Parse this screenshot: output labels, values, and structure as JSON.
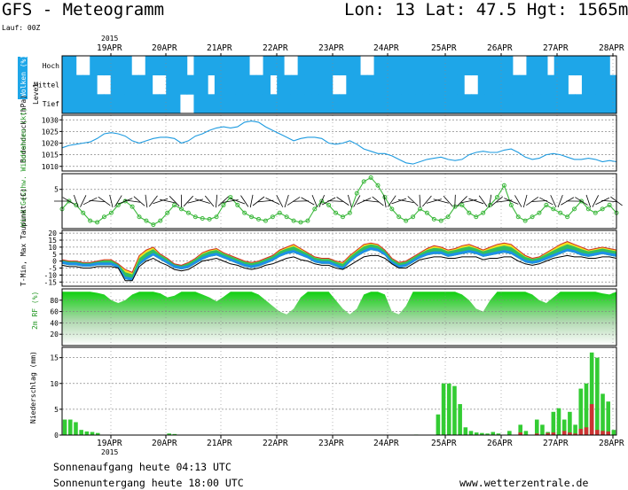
{
  "header": {
    "title": "GFS - Meteogramm",
    "location": "Lon: 13 Lat: 47.5 Hgt: 1565m",
    "run": "Lauf: 00Z",
    "year": "2015"
  },
  "footer": {
    "sunrise": "Sonnenaufgang heute 04:13 UTC",
    "sunset": "Sonnenuntergang heute 18:00 UTC",
    "site": "www.wetterzentrale.de"
  },
  "days": [
    "19APR",
    "20APR",
    "21APR",
    "22APR",
    "23APR",
    "24APR",
    "25APR",
    "26APR",
    "27APR",
    "28APR"
  ],
  "colors": {
    "cloud": "#1ea6e8",
    "humidity": "#22c022",
    "precip": "#33cc33",
    "precip_conv": "#cc3333",
    "pressure": "#1e9be0",
    "wind": "#3cb83c"
  },
  "chart_data": [
    {
      "type": "heatmap",
      "panel": "clouds",
      "ylabel": "Wolken (%)",
      "ylabel2": "Level",
      "levels": [
        "Hoch",
        "Mittel",
        "Tief"
      ],
      "x_unit": "forecast step (3h) from 18APR 12Z",
      "cover_high": [
        1,
        1,
        0,
        0,
        1,
        1,
        1,
        1,
        1,
        1,
        0,
        0,
        1,
        1,
        1,
        1,
        1,
        1,
        0,
        1,
        1,
        1,
        1,
        1,
        1,
        1,
        1,
        0,
        0,
        1,
        1,
        1,
        0,
        0,
        1,
        1,
        1,
        1,
        1,
        1,
        1,
        1,
        1,
        0,
        0,
        1,
        1,
        1,
        1,
        1,
        1,
        1,
        1,
        1,
        1,
        1,
        1,
        1,
        1,
        1,
        1,
        1,
        1,
        1,
        1,
        0,
        0,
        1,
        1,
        1,
        0,
        1,
        1,
        1,
        1,
        1,
        1,
        1,
        1,
        0
      ],
      "cover_mid": [
        1,
        1,
        1,
        1,
        1,
        0,
        0,
        1,
        1,
        1,
        1,
        1,
        1,
        0,
        0,
        1,
        1,
        1,
        1,
        1,
        1,
        0,
        1,
        1,
        1,
        1,
        1,
        1,
        1,
        1,
        0,
        1,
        1,
        1,
        1,
        1,
        1,
        1,
        1,
        0,
        0,
        1,
        1,
        1,
        1,
        1,
        1,
        1,
        1,
        1,
        1,
        1,
        1,
        1,
        1,
        1,
        1,
        1,
        0,
        0,
        1,
        1,
        1,
        1,
        1,
        1,
        1,
        1,
        1,
        1,
        1,
        1,
        1,
        0,
        0,
        1,
        1,
        1,
        1,
        1
      ],
      "cover_low": [
        1,
        1,
        1,
        1,
        1,
        1,
        1,
        1,
        1,
        1,
        1,
        1,
        1,
        1,
        1,
        1,
        1,
        0,
        0,
        1,
        1,
        1,
        1,
        1,
        1,
        1,
        1,
        1,
        1,
        1,
        1,
        1,
        1,
        1,
        1,
        1,
        1,
        1,
        1,
        1,
        1,
        1,
        1,
        1,
        1,
        1,
        1,
        1,
        1,
        1,
        1,
        1,
        1,
        1,
        1,
        1,
        1,
        1,
        1,
        1,
        1,
        1,
        1,
        1,
        1,
        1,
        1,
        1,
        1,
        1,
        1,
        1,
        1,
        1,
        1,
        1,
        1,
        1,
        1,
        1
      ]
    },
    {
      "type": "line",
      "panel": "pressure",
      "ylabel": "Bodendruck (hPa)",
      "yticks": [
        1010,
        1015,
        1020,
        1025,
        1030
      ],
      "ylim": [
        1008,
        1032
      ],
      "values": [
        1018,
        1019,
        1019.5,
        1020,
        1020.5,
        1022,
        1024,
        1024.5,
        1024,
        1023,
        1021,
        1020,
        1021,
        1022,
        1022.5,
        1022.5,
        1022,
        1020,
        1021,
        1023,
        1024,
        1025.5,
        1026.5,
        1027,
        1026.5,
        1027,
        1029,
        1029.5,
        1029,
        1027,
        1025.5,
        1024,
        1022.5,
        1021,
        1022,
        1022.5,
        1022.5,
        1022,
        1020,
        1019.5,
        1020,
        1021,
        1019.5,
        1017.5,
        1016.5,
        1015.5,
        1015.5,
        1014.5,
        1013,
        1011.5,
        1011,
        1012,
        1013,
        1013.5,
        1014,
        1013,
        1012.5,
        1013,
        1015,
        1016,
        1016.5,
        1016,
        1016,
        1017,
        1017.5,
        1016,
        1014,
        1013,
        1013.5,
        1015,
        1015.5,
        1015,
        1014,
        1013,
        1013,
        1013.5,
        1013,
        1012,
        1012.5,
        1012
      ]
    },
    {
      "type": "line",
      "panel": "wind",
      "ylabel": "Wind Geschw. Windfahnen (kt)",
      "yticks": [
        5
      ],
      "ylim": [
        0,
        7
      ],
      "values": [
        2.5,
        3.5,
        3,
        2,
        1,
        0.8,
        1.5,
        2,
        3,
        3.5,
        2.8,
        1.5,
        1,
        0.5,
        1,
        2,
        3,
        2.5,
        2,
        1.5,
        1.3,
        1.2,
        1.5,
        3,
        4,
        3,
        2,
        1.5,
        1.2,
        1,
        1.5,
        2,
        1.5,
        1,
        0.8,
        1,
        2.5,
        3.5,
        3,
        2,
        1.5,
        2,
        4.5,
        6,
        6.5,
        5.5,
        4,
        2.5,
        1.5,
        1,
        1.5,
        2.5,
        2,
        1.2,
        1,
        1.5,
        2.8,
        3,
        2,
        1.5,
        2,
        3,
        4,
        5.5,
        3,
        1.5,
        1,
        1.5,
        2,
        3,
        2.5,
        2,
        1.5,
        2.5,
        3.5,
        2.5,
        2,
        2.5,
        3,
        2
      ]
    },
    {
      "type": "area",
      "panel": "temperature",
      "ylabel": "T-Min, Max Taupunkt (C)",
      "yticks": [
        -15,
        -10,
        -5,
        0,
        5,
        10,
        15,
        20
      ],
      "ylim": [
        -18,
        22
      ],
      "tmax": [
        1,
        0,
        0,
        -1,
        -1,
        0,
        1,
        1,
        -2,
        -6,
        -8,
        4,
        8,
        10,
        5,
        2,
        -2,
        -3,
        -1,
        2,
        6,
        8,
        9,
        6,
        4,
        2,
        0,
        -1,
        0,
        2,
        4,
        8,
        10,
        12,
        9,
        6,
        3,
        2,
        2,
        0,
        -1,
        4,
        8,
        12,
        13,
        12,
        8,
        2,
        -1,
        0,
        3,
        6,
        9,
        11,
        10,
        8,
        9,
        11,
        12,
        10,
        8,
        10,
        12,
        13,
        12,
        8,
        4,
        2,
        3,
        6,
        9,
        12,
        14,
        12,
        10,
        8,
        9,
        10,
        9,
        8
      ],
      "tmin": [
        -2,
        -3,
        -3,
        -4,
        -4,
        -3,
        -3,
        -3,
        -5,
        -13,
        -14,
        -3,
        1,
        4,
        1,
        -2,
        -5,
        -6,
        -5,
        -2,
        1,
        3,
        4,
        2,
        0,
        -2,
        -4,
        -5,
        -4,
        -2,
        0,
        3,
        5,
        6,
        4,
        2,
        -1,
        -2,
        -2,
        -4,
        -6,
        -1,
        3,
        6,
        8,
        7,
        4,
        -2,
        -5,
        -4,
        -1,
        2,
        4,
        5,
        5,
        3,
        4,
        5,
        6,
        5,
        3,
        4,
        5,
        6,
        5,
        2,
        -1,
        -2,
        -1,
        1,
        3,
        5,
        7,
        6,
        4,
        3,
        4,
        5,
        4,
        3
      ],
      "dewpoint": [
        -3,
        -4,
        -4,
        -5,
        -5,
        -4,
        -4,
        -4,
        -5,
        -14,
        -14,
        -4,
        0,
        2,
        -1,
        -3,
        -6,
        -7,
        -6,
        -3,
        0,
        1,
        2,
        0,
        -2,
        -3,
        -5,
        -6,
        -5,
        -3,
        -2,
        0,
        2,
        3,
        1,
        0,
        -2,
        -3,
        -3,
        -5,
        -6,
        -3,
        0,
        3,
        4,
        4,
        2,
        -2,
        -5,
        -5,
        -2,
        1,
        2,
        3,
        3,
        2,
        2,
        3,
        3,
        3,
        1,
        2,
        2,
        3,
        3,
        0,
        -2,
        -3,
        -2,
        0,
        2,
        3,
        4,
        3,
        3,
        2,
        2,
        3,
        3,
        2
      ]
    },
    {
      "type": "area",
      "panel": "humidity",
      "ylabel": "2m RF (%)",
      "yticks": [
        20,
        40,
        60,
        80
      ],
      "ylim": [
        0,
        100
      ],
      "values": [
        95,
        95,
        95,
        95,
        95,
        93,
        90,
        80,
        75,
        80,
        90,
        95,
        95,
        95,
        92,
        85,
        88,
        95,
        95,
        95,
        90,
        85,
        78,
        86,
        95,
        95,
        95,
        95,
        90,
        80,
        70,
        60,
        55,
        65,
        85,
        95,
        95,
        95,
        95,
        80,
        65,
        55,
        65,
        90,
        95,
        95,
        90,
        60,
        55,
        70,
        95,
        95,
        95,
        95,
        95,
        95,
        95,
        90,
        80,
        65,
        60,
        80,
        95,
        95,
        95,
        95,
        95,
        90,
        80,
        75,
        85,
        95,
        95,
        95,
        95,
        95,
        95,
        92,
        90,
        95
      ]
    },
    {
      "type": "bar",
      "panel": "precipitation",
      "ylabel": "Niederschlag (mm)",
      "yticks": [
        0,
        5,
        10,
        15
      ],
      "ylim": [
        0,
        17
      ],
      "total": [
        3,
        3,
        2.5,
        1,
        0.7,
        0.6,
        0.4,
        0,
        0,
        0,
        0,
        0,
        0,
        0,
        0,
        0,
        0,
        0,
        0,
        0.3,
        0.2,
        0,
        0,
        0,
        0,
        0,
        0,
        0,
        0,
        0,
        0,
        0,
        0,
        0,
        0,
        0,
        0,
        0,
        0,
        0,
        0,
        0,
        0,
        0,
        0,
        0,
        0,
        0,
        0,
        0,
        0,
        0,
        0,
        0,
        0,
        0,
        0,
        0,
        0,
        0,
        0,
        0,
        0,
        0,
        0.1,
        0,
        0,
        0,
        4,
        10,
        10,
        9.5,
        6,
        1.5,
        0.8,
        0.5,
        0.4,
        0.3,
        0.6,
        0.3,
        0,
        0.8,
        0,
        2,
        0.8,
        0,
        3,
        2,
        0.6,
        4.5,
        5.2,
        3,
        4.5,
        2,
        9,
        10,
        16,
        15,
        8,
        6.5,
        1
      ],
      "convective": [
        0,
        0,
        0,
        0,
        0,
        0,
        0,
        0,
        0,
        0,
        0,
        0,
        0,
        0,
        0,
        0,
        0,
        0,
        0,
        0,
        0,
        0,
        0,
        0,
        0,
        0,
        0,
        0,
        0,
        0,
        0,
        0,
        0,
        0,
        0,
        0,
        0,
        0,
        0,
        0,
        0,
        0,
        0,
        0,
        0,
        0,
        0,
        0,
        0,
        0,
        0,
        0,
        0,
        0,
        0,
        0,
        0,
        0,
        0,
        0,
        0,
        0,
        0,
        0,
        0,
        0,
        0,
        0,
        0,
        0,
        0,
        0,
        0,
        0,
        0,
        0,
        0,
        0,
        0,
        0,
        0,
        0,
        0,
        0.5,
        0,
        0,
        0.3,
        0,
        0.4,
        0.5,
        0,
        0.8,
        0.5,
        0.3,
        1.2,
        1.5,
        6,
        1,
        0.8,
        0.7,
        0
      ]
    }
  ]
}
